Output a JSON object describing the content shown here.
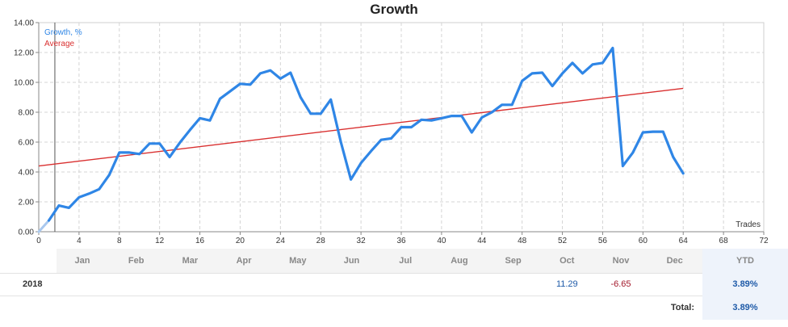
{
  "chart_data": {
    "type": "line",
    "title": "Growth",
    "xlabel": "Trades",
    "ylabel": "",
    "xlim": [
      0,
      72
    ],
    "ylim": [
      0,
      14
    ],
    "x_ticks": [
      0,
      4,
      8,
      12,
      16,
      20,
      24,
      28,
      32,
      36,
      40,
      44,
      48,
      52,
      56,
      60,
      64,
      68,
      72
    ],
    "y_ticks": [
      "0.00",
      "2.00",
      "4.00",
      "6.00",
      "8.00",
      "10.00",
      "12.00",
      "14.00"
    ],
    "grid": true,
    "legend_position": "top-left",
    "series": [
      {
        "name": "Growth, %",
        "color": "#2f86e6",
        "x": [
          0,
          1,
          2,
          3,
          4,
          5,
          6,
          7,
          8,
          9,
          10,
          11,
          12,
          13,
          14,
          15,
          16,
          17,
          18,
          19,
          20,
          21,
          22,
          23,
          24,
          25,
          26,
          27,
          28,
          29,
          30,
          31,
          32,
          33,
          34,
          35,
          36,
          37,
          38,
          39,
          40,
          41,
          42,
          43,
          44,
          45,
          46,
          47,
          48,
          49,
          50,
          51,
          52,
          53,
          54,
          55,
          56,
          57,
          58,
          59,
          60,
          61,
          62,
          63,
          64
        ],
        "values": [
          0.0,
          0.75,
          1.75,
          1.6,
          2.3,
          2.55,
          2.85,
          3.8,
          5.3,
          5.3,
          5.2,
          5.9,
          5.9,
          5.0,
          5.95,
          6.8,
          7.6,
          7.45,
          8.9,
          9.4,
          9.9,
          9.85,
          10.6,
          10.8,
          10.25,
          10.65,
          9.0,
          7.9,
          7.9,
          8.85,
          6.0,
          3.5,
          4.6,
          5.4,
          6.15,
          6.25,
          7.0,
          7.0,
          7.5,
          7.45,
          7.6,
          7.75,
          7.75,
          6.65,
          7.65,
          8.0,
          8.5,
          8.5,
          10.1,
          10.6,
          10.65,
          9.75,
          10.6,
          11.3,
          10.6,
          11.2,
          11.3,
          12.3,
          4.4,
          5.3,
          6.65,
          6.7,
          6.7,
          5.0,
          3.9
        ]
      },
      {
        "name": "Average",
        "color": "#d93030",
        "x": [
          0,
          64
        ],
        "values": [
          4.4,
          9.6
        ]
      }
    ]
  },
  "results": {
    "months": [
      "Jan",
      "Feb",
      "Mar",
      "Apr",
      "May",
      "Jun",
      "Jul",
      "Aug",
      "Sep",
      "Oct",
      "Nov",
      "Dec"
    ],
    "ytd_header": "YTD",
    "year": "2018",
    "month_values": [
      "",
      "",
      "",
      "",
      "",
      "",
      "",
      "",
      "",
      "11.29",
      "-6.65",
      ""
    ],
    "ytd_value": "3.89%",
    "total_label": "Total:",
    "total_value": "3.89%"
  }
}
